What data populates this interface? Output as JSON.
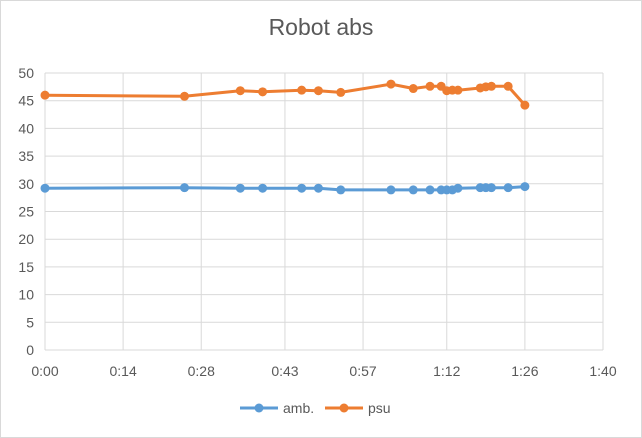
{
  "chart_data": {
    "type": "line",
    "title": "Robot abs",
    "xlabel": "",
    "ylabel": "",
    "x_ticks": [
      "0:00",
      "0:14",
      "0:28",
      "0:43",
      "0:57",
      "1:12",
      "1:26",
      "1:40"
    ],
    "y_ticks": [
      "0",
      "5",
      "10",
      "15",
      "20",
      "25",
      "30",
      "35",
      "40",
      "45",
      "50"
    ],
    "xlim": [
      "0:00",
      "1:40"
    ],
    "ylim": [
      0,
      50
    ],
    "grid": true,
    "legend_position": "bottom",
    "x": [
      "0:00",
      "0:25",
      "0:35",
      "0:39",
      "0:46",
      "0:49",
      "0:53",
      "1:02",
      "1:06",
      "1:09",
      "1:11",
      "1:12",
      "1:13",
      "1:14",
      "1:18",
      "1:19",
      "1:20",
      "1:23",
      "1:26"
    ],
    "series": [
      {
        "name": "amb.",
        "color": "#5b9bd5",
        "values": [
          29.2,
          29.3,
          29.2,
          29.2,
          29.2,
          29.2,
          28.9,
          28.9,
          28.9,
          28.9,
          28.9,
          28.9,
          28.9,
          29.2,
          29.3,
          29.3,
          29.3,
          29.3,
          29.5
        ]
      },
      {
        "name": "psu",
        "color": "#ed7d31",
        "values": [
          46.0,
          45.8,
          46.8,
          46.6,
          46.9,
          46.8,
          46.5,
          48.0,
          47.2,
          47.6,
          47.6,
          46.8,
          46.9,
          46.9,
          47.3,
          47.5,
          47.6,
          47.6,
          44.2
        ]
      }
    ]
  }
}
